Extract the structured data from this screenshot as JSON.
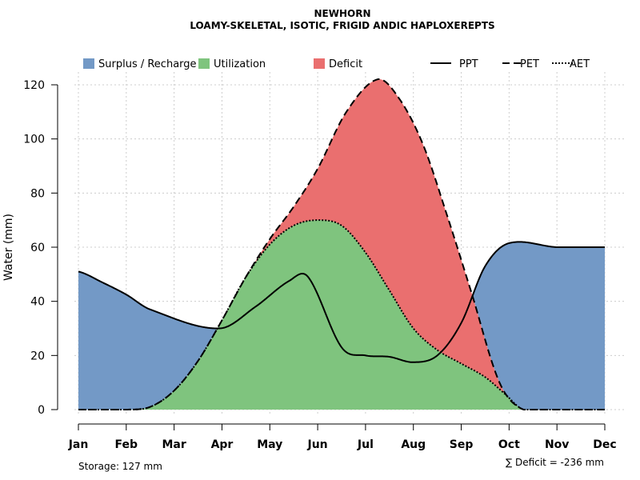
{
  "chart_data": {
    "type": "area",
    "title": "NEWHORN",
    "subtitle": "LOAMY-SKELETAL, ISOTIC, FRIGID ANDIC HAPLOXEREPTS",
    "ylabel": "Water (mm)",
    "xlabel": "",
    "ylim": [
      0,
      120
    ],
    "yticks": [
      "0",
      "20",
      "40",
      "60",
      "80",
      "100",
      "120"
    ],
    "categories": [
      "Jan",
      "Feb",
      "Mar",
      "Apr",
      "May",
      "Jun",
      "Jul",
      "Aug",
      "Sep",
      "Oct",
      "Nov",
      "Dec"
    ],
    "grid": true,
    "series": [
      {
        "name": "PPT",
        "style": "solid",
        "values": [
          51,
          47,
          42.5,
          37,
          30,
          38,
          47.5,
          49,
          23,
          20,
          19.5,
          17.5,
          20,
          32,
          53,
          61.5,
          60
        ],
        "x": [
          0,
          0.5,
          1,
          1.5,
          2.95,
          3.7,
          4.4,
          4.8,
          5.5,
          6,
          6.5,
          7,
          7.5,
          8,
          8.5,
          9,
          10
        ]
      },
      {
        "name": "PET",
        "style": "dashed",
        "values": [
          0,
          0,
          1,
          7,
          18,
          33,
          49,
          63,
          75,
          89,
          110,
          122,
          115,
          98,
          72,
          44,
          10,
          0,
          0
        ],
        "x": [
          0,
          1,
          1.5,
          2,
          2.5,
          3,
          3.5,
          4,
          4.5,
          5,
          5.6,
          6.25,
          6.7,
          7.2,
          7.7,
          8.2,
          8.8,
          9.3,
          10
        ]
      },
      {
        "name": "AET",
        "style": "dotted",
        "values": [
          0,
          0,
          1,
          7,
          18,
          33,
          49,
          61,
          68,
          70,
          68,
          58,
          44,
          30,
          22,
          17,
          12,
          6,
          0,
          0
        ],
        "x": [
          0,
          1,
          1.5,
          2,
          2.5,
          3,
          3.5,
          4,
          4.5,
          5,
          5.5,
          6,
          6.5,
          7,
          7.5,
          8,
          8.5,
          8.9,
          9.3,
          10
        ]
      }
    ],
    "areas": [
      {
        "name": "Surplus / Recharge",
        "color": "#7399c6"
      },
      {
        "name": "Utilization",
        "color": "#7fc47e"
      },
      {
        "name": "Deficit",
        "color": "#ea6f6f"
      }
    ],
    "storage_label": "Storage: 127 mm",
    "deficit_label": "∑ Deficit = -236 mm"
  }
}
